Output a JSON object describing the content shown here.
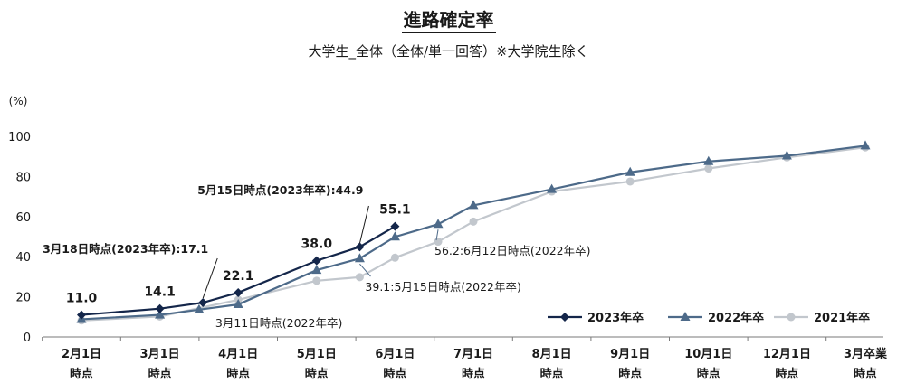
{
  "title": "進路確定率",
  "subtitle": "大学生_全体（全体/単一回答）※大学院生除く",
  "y_unit": "(%)",
  "colors": {
    "s2023": "#14264a",
    "s2022": "#4d6a89",
    "s2021": "#c2c7cd",
    "axis": "#7a7a7a"
  },
  "chart_data": {
    "type": "line",
    "ylim": [
      0,
      100
    ],
    "yticks": [
      0,
      20,
      40,
      60,
      80,
      100
    ],
    "categories": [
      [
        "2月1日",
        "時点"
      ],
      [
        "3月1日",
        "時点"
      ],
      [
        "4月1日",
        "時点"
      ],
      [
        "5月1日",
        "時点"
      ],
      [
        "6月1日",
        "時点"
      ],
      [
        "7月1日",
        "時点"
      ],
      [
        "8月1日",
        "時点"
      ],
      [
        "9月1日",
        "時点"
      ],
      [
        "10月1日",
        "時点"
      ],
      [
        "12月1日",
        "時点"
      ],
      [
        "3月卒業",
        "時点"
      ]
    ],
    "legend_position": "bottom-right",
    "grid": false,
    "series": [
      {
        "name": "2023年卒",
        "marker": "diamond",
        "points": [
          {
            "x": 0,
            "y": 11.0,
            "label": "11.0"
          },
          {
            "x": 1,
            "y": 14.1,
            "label": "14.1"
          },
          {
            "x": 1.55,
            "y": 17.1
          },
          {
            "x": 2,
            "y": 22.1,
            "label": "22.1"
          },
          {
            "x": 3,
            "y": 38.0,
            "label": "38.0"
          },
          {
            "x": 3.55,
            "y": 44.9
          },
          {
            "x": 4,
            "y": 55.1,
            "label": "55.1"
          }
        ]
      },
      {
        "name": "2022年卒",
        "marker": "triangle",
        "points": [
          {
            "x": 0,
            "y": 8.8
          },
          {
            "x": 1,
            "y": 11.0
          },
          {
            "x": 1.5,
            "y": 13.6
          },
          {
            "x": 2,
            "y": 16.2
          },
          {
            "x": 3,
            "y": 33.3
          },
          {
            "x": 3.55,
            "y": 39.1
          },
          {
            "x": 4,
            "y": 49.9
          },
          {
            "x": 4.55,
            "y": 56.2
          },
          {
            "x": 5,
            "y": 65.6
          },
          {
            "x": 6,
            "y": 73.6
          },
          {
            "x": 7,
            "y": 82.1
          },
          {
            "x": 8,
            "y": 87.5
          },
          {
            "x": 9,
            "y": 90.3
          },
          {
            "x": 10,
            "y": 95.3
          }
        ]
      },
      {
        "name": "2021年卒",
        "marker": "circle",
        "points": [
          {
            "x": 0,
            "y": 8.2
          },
          {
            "x": 1,
            "y": 10.2
          },
          {
            "x": 2,
            "y": 18.5
          },
          {
            "x": 3,
            "y": 28.0
          },
          {
            "x": 3.55,
            "y": 29.8
          },
          {
            "x": 4,
            "y": 39.5
          },
          {
            "x": 4.55,
            "y": 47.5
          },
          {
            "x": 5,
            "y": 57.5
          },
          {
            "x": 6,
            "y": 72.5
          },
          {
            "x": 7,
            "y": 77.5
          },
          {
            "x": 8,
            "y": 84.0
          },
          {
            "x": 9,
            "y": 89.5
          },
          {
            "x": 10,
            "y": 94.5
          }
        ]
      }
    ],
    "annotations": [
      {
        "text": "5月15日時点(2023年卒):44.9",
        "x": 3.55,
        "y": 44.9
      },
      {
        "text": "3月18日時点(2023年卒):17.1",
        "x": 1.55,
        "y": 17.1
      },
      {
        "text": "3月11日時点(2022年卒)",
        "x": 1.5,
        "y": 13.6
      },
      {
        "text": "39.1:5月15日時点(2022年卒)",
        "x": 3.55,
        "y": 39.1
      },
      {
        "text": "56.2:6月12日時点(2022年卒)",
        "x": 4.55,
        "y": 56.2
      }
    ]
  }
}
